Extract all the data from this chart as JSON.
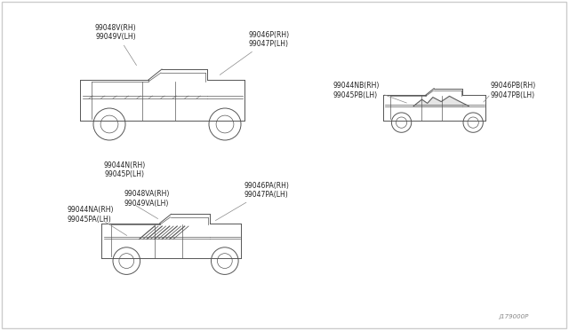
{
  "bg_color": "#f5f5f5",
  "line_color": "#555555",
  "text_color": "#222222",
  "title": "",
  "watermark": "J179000P",
  "labels": {
    "truck1": {
      "top_left": "99048V(RH)\n99049V(LH)",
      "top_right": "99046P(RH)\n99047P(LH)",
      "bottom_left": "99044N(RH)\n99045P(LH)"
    },
    "truck2": {
      "top_left": "99044NB(RH)\n99045PB(LH)",
      "top_right": "99046PB(RH)\n99047PB(LH)"
    },
    "truck3": {
      "left1": "99044NA(RH)\n99045PA(LH)",
      "left2": "99048VA(RH)\n99049VA(LH)",
      "right": "99046PA(RH)\n99047PA(LH)"
    }
  }
}
